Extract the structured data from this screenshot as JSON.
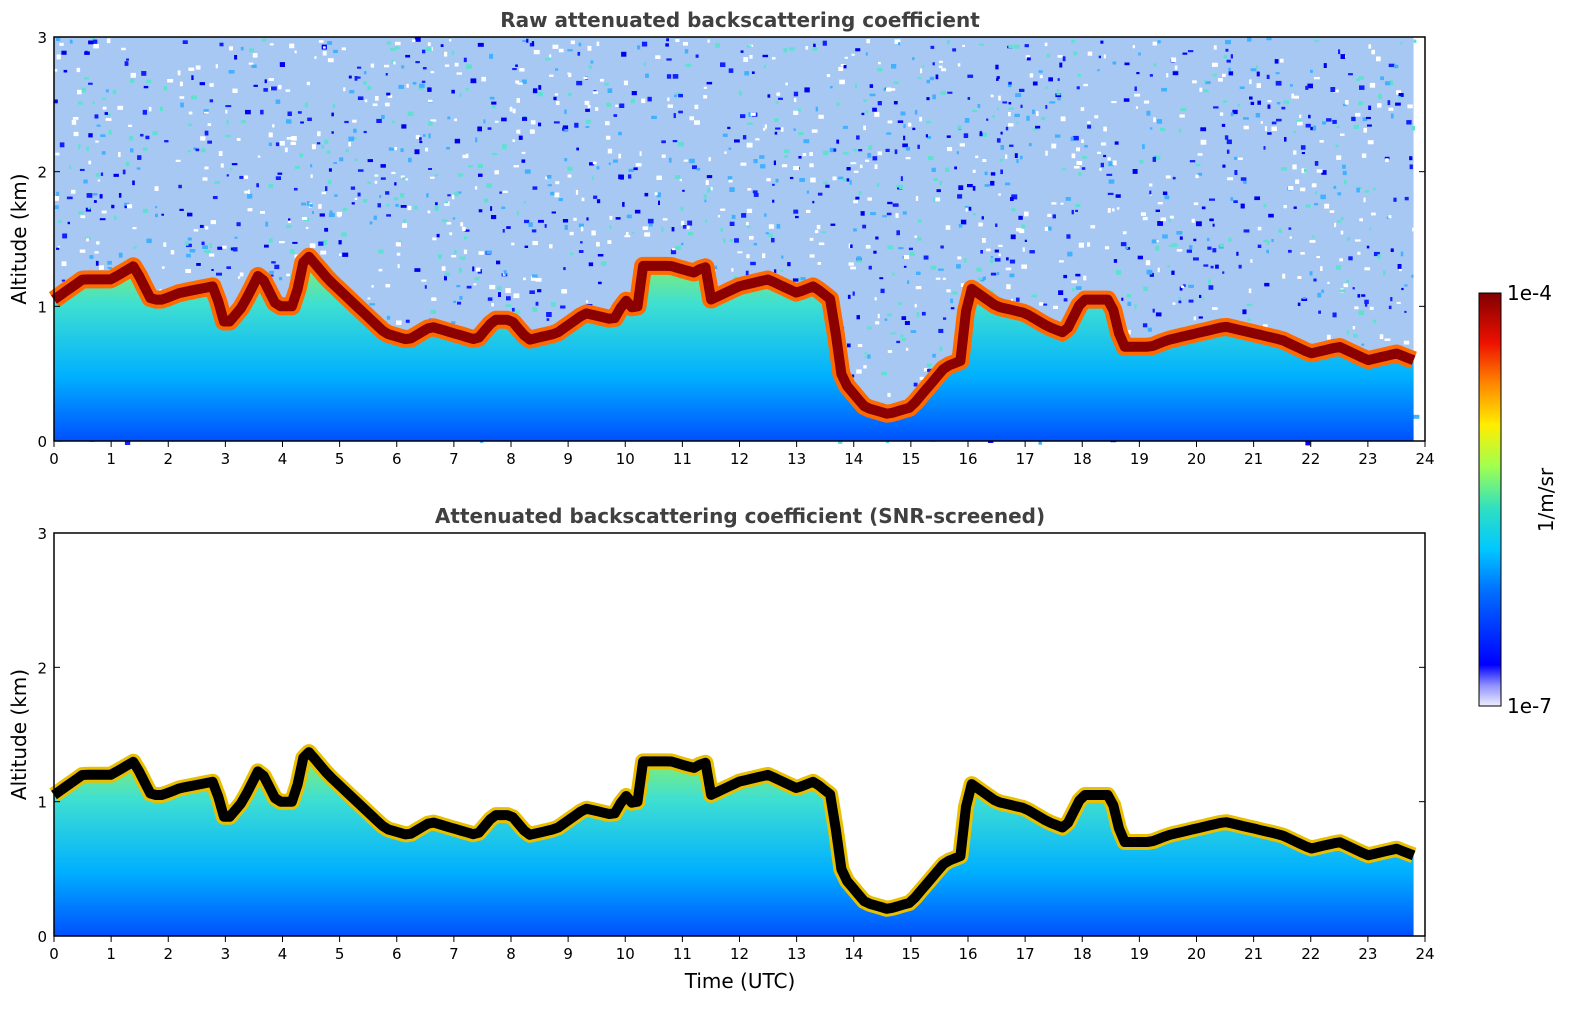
{
  "chart_data": [
    {
      "type": "heatmap",
      "title": "Raw attenuated backscattering coefficient",
      "xlabel": "",
      "ylabel": "Altitude (km)",
      "xlim": [
        0,
        24
      ],
      "ylim": [
        0,
        3
      ],
      "x_ticks": [
        "0",
        "1",
        "2",
        "3",
        "4",
        "5",
        "6",
        "7",
        "8",
        "9",
        "10",
        "11",
        "12",
        "13",
        "14",
        "15",
        "16",
        "17",
        "18",
        "19",
        "20",
        "21",
        "22",
        "23",
        "24"
      ],
      "y_ticks": [
        "0",
        "1",
        "2",
        "3"
      ],
      "x_data_end": 23.8,
      "layer_top_km": [
        [
          0,
          1.05
        ],
        [
          0.5,
          1.2
        ],
        [
          1,
          1.2
        ],
        [
          1.4,
          1.3
        ],
        [
          1.7,
          1.05
        ],
        [
          1.9,
          1.05
        ],
        [
          2.2,
          1.1
        ],
        [
          2.8,
          1.15
        ],
        [
          3.0,
          0.85
        ],
        [
          3.3,
          1.0
        ],
        [
          3.6,
          1.25
        ],
        [
          3.9,
          1.0
        ],
        [
          4.2,
          1.0
        ],
        [
          4.4,
          1.4
        ],
        [
          4.8,
          1.2
        ],
        [
          5.3,
          1.0
        ],
        [
          5.8,
          0.8
        ],
        [
          6.2,
          0.75
        ],
        [
          6.6,
          0.85
        ],
        [
          7.0,
          0.8
        ],
        [
          7.4,
          0.75
        ],
        [
          7.7,
          0.9
        ],
        [
          8.0,
          0.9
        ],
        [
          8.3,
          0.75
        ],
        [
          8.8,
          0.8
        ],
        [
          9.3,
          0.95
        ],
        [
          9.8,
          0.9
        ],
        [
          10.0,
          1.05
        ],
        [
          10.2,
          0.95
        ],
        [
          10.3,
          1.3
        ],
        [
          10.8,
          1.3
        ],
        [
          11.2,
          1.25
        ],
        [
          11.4,
          1.3
        ],
        [
          11.5,
          1.05
        ],
        [
          12.0,
          1.15
        ],
        [
          12.5,
          1.2
        ],
        [
          13.0,
          1.1
        ],
        [
          13.3,
          1.15
        ],
        [
          13.6,
          1.05
        ],
        [
          13.8,
          0.45
        ],
        [
          14.2,
          0.25
        ],
        [
          14.6,
          0.2
        ],
        [
          15.0,
          0.25
        ],
        [
          15.3,
          0.4
        ],
        [
          15.6,
          0.55
        ],
        [
          15.9,
          0.6
        ],
        [
          16.0,
          1.15
        ],
        [
          16.5,
          1.0
        ],
        [
          17.0,
          0.95
        ],
        [
          17.4,
          0.85
        ],
        [
          17.7,
          0.8
        ],
        [
          18.0,
          1.05
        ],
        [
          18.5,
          1.05
        ],
        [
          18.7,
          0.7
        ],
        [
          19.2,
          0.7
        ],
        [
          19.5,
          0.75
        ],
        [
          20.0,
          0.8
        ],
        [
          20.5,
          0.85
        ],
        [
          21.0,
          0.8
        ],
        [
          21.5,
          0.75
        ],
        [
          22.0,
          0.65
        ],
        [
          22.5,
          0.7
        ],
        [
          23.0,
          0.6
        ],
        [
          23.5,
          0.65
        ],
        [
          23.8,
          0.6
        ]
      ]
    },
    {
      "type": "heatmap",
      "title": "Attenuated backscattering coefficient (SNR-screened)",
      "xlabel": "Time (UTC)",
      "ylabel": "Altitude (km)",
      "xlim": [
        0,
        24
      ],
      "ylim": [
        0,
        3
      ],
      "x_ticks": [
        "0",
        "1",
        "2",
        "3",
        "4",
        "5",
        "6",
        "7",
        "8",
        "9",
        "10",
        "11",
        "12",
        "13",
        "14",
        "15",
        "16",
        "17",
        "18",
        "19",
        "20",
        "21",
        "22",
        "23",
        "24"
      ],
      "y_ticks": [
        "0",
        "1",
        "2",
        "3"
      ],
      "x_data_end": 23.8
    }
  ],
  "colorbar": {
    "label": "1/m/sr",
    "max_label": "1e-4",
    "min_label": "1e-7",
    "scale": "log",
    "colors": [
      "#e8e8ff",
      "#8080ff",
      "#0000ff",
      "#0060ff",
      "#00c0ff",
      "#40ffc0",
      "#c0ff40",
      "#ffff00",
      "#ff8000",
      "#ff0000",
      "#800000"
    ]
  }
}
